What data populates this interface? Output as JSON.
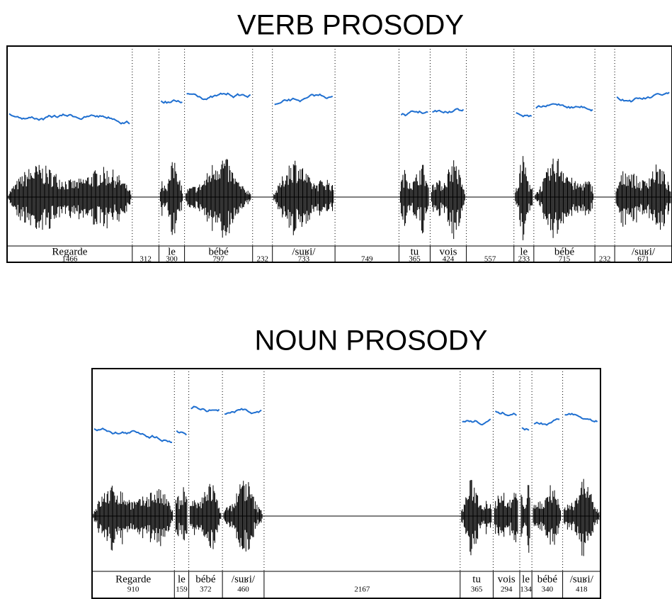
{
  "panels": [
    {
      "title": "VERB PROSODY",
      "segments": [
        {
          "label": "Regarde",
          "duration": 1466
        },
        {
          "label": null,
          "duration": 312
        },
        {
          "label": "le",
          "duration": 300
        },
        {
          "label": "bébé",
          "duration": 797
        },
        {
          "label": null,
          "duration": 232
        },
        {
          "label": "/suʁi/",
          "duration": 733
        },
        {
          "label": null,
          "duration": 749
        },
        {
          "label": "tu",
          "duration": 365
        },
        {
          "label": "vois",
          "duration": 424
        },
        {
          "label": null,
          "duration": 557
        },
        {
          "label": "le",
          "duration": 233
        },
        {
          "label": "bébé",
          "duration": 715
        },
        {
          "label": null,
          "duration": 232
        },
        {
          "label": "/suʁi/",
          "duration": 671
        }
      ]
    },
    {
      "title": "NOUN PROSODY",
      "segments": [
        {
          "label": "Regarde",
          "duration": 910
        },
        {
          "label": "le",
          "duration": 159
        },
        {
          "label": "bébé",
          "duration": 372
        },
        {
          "label": "/suʁi/",
          "duration": 460
        },
        {
          "label": null,
          "duration": 2167
        },
        {
          "label": "tu",
          "duration": 365
        },
        {
          "label": "vois",
          "duration": 294
        },
        {
          "label": "le",
          "duration": 134
        },
        {
          "label": "bébé",
          "duration": 340
        },
        {
          "label": "/suʁi/",
          "duration": 418
        }
      ]
    }
  ]
}
